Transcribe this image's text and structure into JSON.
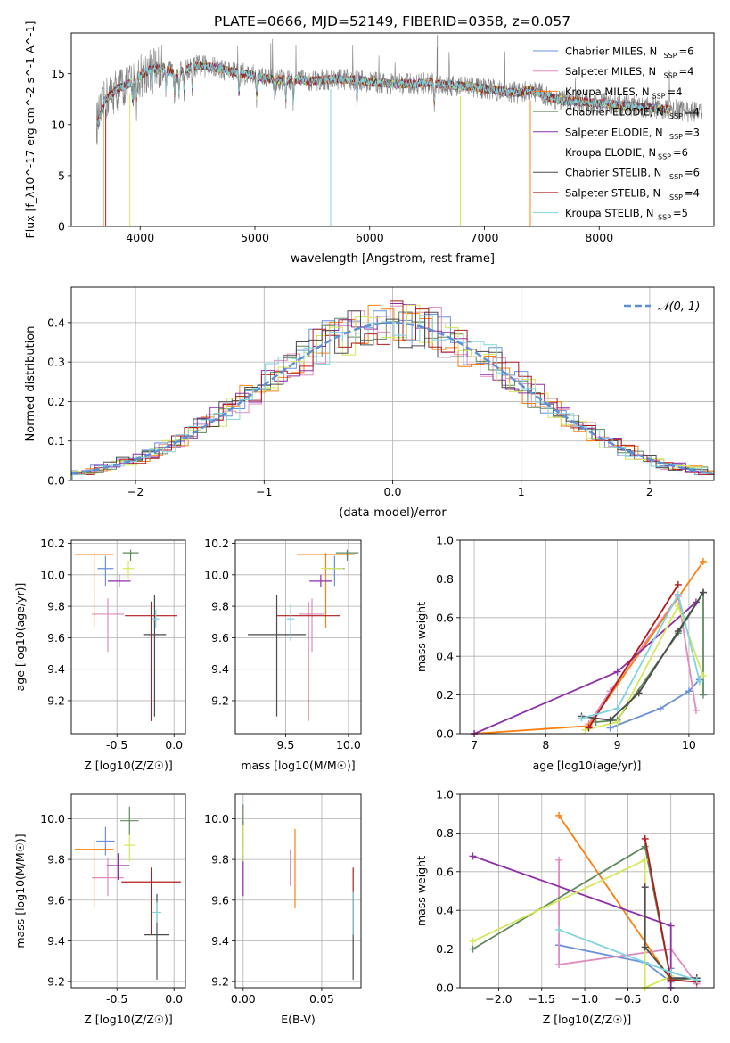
{
  "title": "PLATE=0666, MJD=52149, FIBERID=0358, z=0.057",
  "models": [
    {
      "name": "Chabrier MILES",
      "nssp": "6",
      "color": "#6a8fdc"
    },
    {
      "name": "Salpeter MILES",
      "nssp": "4",
      "color": "#e08cbf"
    },
    {
      "name": "Kroupa MILES",
      "nssp": "4",
      "color": "#ff7f0e"
    },
    {
      "name": "Chabrier ELODIE",
      "nssp": "4",
      "color": "#5f8a5f"
    },
    {
      "name": "Salpeter ELODIE",
      "nssp": "3",
      "color": "#8e2fa8"
    },
    {
      "name": "Kroupa ELODIE",
      "nssp": "6",
      "color": "#d4e85a"
    },
    {
      "name": "Chabrier STELIB",
      "nssp": "6",
      "color": "#4b4b4b"
    },
    {
      "name": "Salpeter STELIB",
      "nssp": "4",
      "color": "#b01c1c"
    },
    {
      "name": "Kroupa STELIB",
      "nssp": "5",
      "color": "#7fd4e0"
    }
  ],
  "chart_data": [
    {
      "id": "spectrum",
      "type": "line",
      "xlabel": "wavelength [Angstrom, rest frame]",
      "ylabel": "Flux [f_λ10^-17 erg cm^-2 s^-1 A^-1]",
      "xlim": [
        3400,
        9000
      ],
      "ylim": [
        0,
        19
      ],
      "xticks": [
        4000,
        5000,
        6000,
        7000,
        8000
      ],
      "yticks": [
        0,
        5,
        10,
        15
      ],
      "continuum": [
        [
          3620,
          10.0
        ],
        [
          3700,
          12.5
        ],
        [
          3800,
          13.5
        ],
        [
          3900,
          14.0
        ],
        [
          4000,
          14.8
        ],
        [
          4100,
          15.5
        ],
        [
          4200,
          15.6
        ],
        [
          4300,
          15.0
        ],
        [
          4400,
          15.4
        ],
        [
          4500,
          15.8
        ],
        [
          4600,
          15.7
        ],
        [
          4700,
          15.5
        ],
        [
          4800,
          15.2
        ],
        [
          4900,
          15.0
        ],
        [
          5000,
          14.8
        ],
        [
          5100,
          14.5
        ],
        [
          5200,
          14.4
        ],
        [
          5300,
          14.4
        ],
        [
          5400,
          14.4
        ],
        [
          5500,
          14.3
        ],
        [
          5600,
          14.4
        ],
        [
          5700,
          14.5
        ],
        [
          5800,
          14.4
        ],
        [
          5900,
          14.4
        ],
        [
          6000,
          14.2
        ],
        [
          6100,
          14.1
        ],
        [
          6200,
          14.0
        ],
        [
          6300,
          14.0
        ],
        [
          6400,
          14.0
        ],
        [
          6500,
          14.1
        ],
        [
          6600,
          14.0
        ],
        [
          6700,
          13.9
        ],
        [
          6800,
          13.8
        ],
        [
          6900,
          13.7
        ],
        [
          7000,
          13.5
        ],
        [
          7100,
          13.4
        ],
        [
          7200,
          13.2
        ],
        [
          7300,
          13.1
        ],
        [
          7400,
          13.4
        ],
        [
          7500,
          13.0
        ],
        [
          7600,
          12.6
        ],
        [
          7700,
          12.3
        ],
        [
          7800,
          12.3
        ],
        [
          7900,
          12.2
        ],
        [
          8000,
          12.1
        ],
        [
          8100,
          12.0
        ],
        [
          8200,
          11.9
        ],
        [
          8300,
          11.8
        ],
        [
          8400,
          11.7
        ],
        [
          8500,
          11.6
        ],
        [
          8600,
          11.5
        ],
        [
          8700,
          11.4
        ],
        [
          8800,
          11.3
        ]
      ],
      "data_color": "#808080",
      "data_range": [
        3620,
        8900
      ],
      "model_range": [
        3620,
        8620
      ]
    },
    {
      "id": "residuals",
      "type": "histogram",
      "xlabel": "(data-model)/error",
      "ylabel": "Normed distribution",
      "xlim": [
        -2.5,
        2.5
      ],
      "ylim": [
        0,
        0.49
      ],
      "xticks": [
        -2,
        -1,
        0,
        1,
        2
      ],
      "yticks": [
        0.0,
        0.1,
        0.2,
        0.3,
        0.4
      ],
      "reference_label": "𝒩(0, 1)",
      "reference_color": "#5b8fd8",
      "bin_width": 0.1
    },
    {
      "id": "age-vs-Z",
      "type": "errorbar",
      "xlabel": "Z [log10(Z/Z☉)]",
      "ylabel": "age  [log10(age/yr)]",
      "xlim": [
        -0.9,
        0.1
      ],
      "ylim": [
        8.99,
        10.22
      ],
      "xticks": [
        -0.5,
        0.0
      ],
      "yticks": [
        9.2,
        9.4,
        9.6,
        9.8,
        10.0,
        10.2
      ],
      "points": [
        {
          "x": -0.6,
          "y": 10.04,
          "xerr": 0.07,
          "ylo": 0.11,
          "yhi": 0.08
        },
        {
          "x": -0.58,
          "y": 9.75,
          "xerr": 0.14,
          "ylo": 0.24,
          "yhi": 0.1
        },
        {
          "x": -0.7,
          "y": 10.13,
          "xerr": 0.17,
          "ylo": 0.47,
          "yhi": 0.01
        },
        {
          "x": -0.38,
          "y": 10.14,
          "xerr": 0.07,
          "ylo": 0.05,
          "yhi": 0.02
        },
        {
          "x": -0.48,
          "y": 9.96,
          "xerr": 0.1,
          "ylo": 0.04,
          "yhi": 0.04
        },
        {
          "x": -0.4,
          "y": 10.04,
          "xerr": 0.05,
          "ylo": 0.07,
          "yhi": 0.05
        },
        {
          "x": -0.17,
          "y": 9.62,
          "xerr": 0.1,
          "ylo": 0.52,
          "yhi": 0.25
        },
        {
          "x": -0.2,
          "y": 9.74,
          "xerr": 0.23,
          "ylo": 0.67,
          "yhi": 0.09
        },
        {
          "x": -0.16,
          "y": 9.72,
          "xerr": 0.03,
          "ylo": 0.06,
          "yhi": 0.06
        }
      ]
    },
    {
      "id": "age-vs-mass",
      "type": "errorbar",
      "xlabel": "mass [log10(M/M☉)]",
      "ylabel": "",
      "xlim": [
        9.1,
        10.1
      ],
      "ylim": [
        8.99,
        10.22
      ],
      "xticks": [
        9.5,
        10.0
      ],
      "yticks": [
        9.2,
        9.4,
        9.6,
        9.8,
        10.0,
        10.2
      ],
      "points": [
        {
          "x": 9.89,
          "y": 10.04,
          "xerr": 0.08,
          "ylo": 0.11,
          "yhi": 0.08
        },
        {
          "x": 9.71,
          "y": 9.75,
          "xerr": 0.1,
          "ylo": 0.24,
          "yhi": 0.1
        },
        {
          "x": 9.82,
          "y": 10.13,
          "xerr": 0.23,
          "ylo": 0.47,
          "yhi": 0.01
        },
        {
          "x": 9.99,
          "y": 10.14,
          "xerr": 0.09,
          "ylo": 0.05,
          "yhi": 0.02
        },
        {
          "x": 9.78,
          "y": 9.96,
          "xerr": 0.09,
          "ylo": 0.04,
          "yhi": 0.04
        },
        {
          "x": 9.87,
          "y": 10.04,
          "xerr": 0.09,
          "ylo": 0.07,
          "yhi": 0.05
        },
        {
          "x": 9.43,
          "y": 9.62,
          "xerr": 0.23,
          "ylo": 0.52,
          "yhi": 0.25
        },
        {
          "x": 9.68,
          "y": 9.74,
          "xerr": 0.25,
          "ylo": 0.67,
          "yhi": 0.09
        },
        {
          "x": 9.54,
          "y": 9.72,
          "xerr": 0.03,
          "ylo": 0.14,
          "yhi": 0.09
        }
      ]
    },
    {
      "id": "mass-vs-Z",
      "type": "errorbar",
      "xlabel": "Z [log10(Z/Z☉)]",
      "ylabel": "mass [log10(M/M☉)]",
      "xlim": [
        -0.9,
        0.1
      ],
      "ylim": [
        9.17,
        10.12
      ],
      "xticks": [
        -0.5,
        0.0
      ],
      "yticks": [
        9.2,
        9.4,
        9.6,
        9.8,
        10.0
      ],
      "points": [
        {
          "x": -0.6,
          "y": 9.89,
          "xerr": 0.08,
          "ylo": 0.07,
          "yhi": 0.07
        },
        {
          "x": -0.58,
          "y": 9.71,
          "xerr": 0.14,
          "ylo": 0.09,
          "yhi": 0.1
        },
        {
          "x": -0.7,
          "y": 9.85,
          "xerr": 0.17,
          "ylo": 0.29,
          "yhi": 0.05
        },
        {
          "x": -0.39,
          "y": 9.99,
          "xerr": 0.08,
          "ylo": 0.07,
          "yhi": 0.07
        },
        {
          "x": -0.49,
          "y": 9.77,
          "xerr": 0.1,
          "ylo": 0.07,
          "yhi": 0.06
        },
        {
          "x": -0.39,
          "y": 9.87,
          "xerr": 0.05,
          "ylo": 0.08,
          "yhi": 0.05
        },
        {
          "x": -0.15,
          "y": 9.43,
          "xerr": 0.11,
          "ylo": 0.22,
          "yhi": 0.2
        },
        {
          "x": -0.2,
          "y": 9.69,
          "xerr": 0.26,
          "ylo": 0.26,
          "yhi": 0.07
        },
        {
          "x": -0.15,
          "y": 9.54,
          "xerr": 0.04,
          "ylo": 0.05,
          "yhi": 0.05
        }
      ]
    },
    {
      "id": "mass-vs-EBV",
      "type": "errorbar",
      "xlabel": "E(B-V)",
      "ylabel": "",
      "xlim": [
        -0.005,
        0.075
      ],
      "ylim": [
        9.17,
        10.12
      ],
      "xticks": [
        0.0,
        0.05
      ],
      "yticks": [
        9.2,
        9.4,
        9.6,
        9.8,
        10.0
      ],
      "points": [
        {
          "x": 0.0,
          "y": 9.89,
          "xerr": 0,
          "ylo": 0.1,
          "yhi": 0.1
        },
        {
          "x": 0.03,
          "y": 9.72,
          "xerr": 0,
          "ylo": 0.05,
          "yhi": 0.13
        },
        {
          "x": 0.033,
          "y": 9.76,
          "xerr": 0,
          "ylo": 0.2,
          "yhi": 0.19
        },
        {
          "x": 0.0,
          "y": 9.99,
          "xerr": 0,
          "ylo": 0.14,
          "yhi": 0.08
        },
        {
          "x": 0.0,
          "y": 9.77,
          "xerr": 0,
          "ylo": 0.15,
          "yhi": 0.05
        },
        {
          "x": 0.0,
          "y": 9.88,
          "xerr": 0,
          "ylo": 0.09,
          "yhi": 0.09
        },
        {
          "x": 0.07,
          "y": 9.43,
          "xerr": 0,
          "ylo": 0.22,
          "yhi": 0.21
        },
        {
          "x": 0.07,
          "y": 9.66,
          "xerr": 0,
          "ylo": 0.23,
          "yhi": 0.1
        },
        {
          "x": 0.07,
          "y": 9.54,
          "xerr": 0,
          "ylo": 0.11,
          "yhi": 0.1
        }
      ]
    },
    {
      "id": "weight-vs-age",
      "type": "line",
      "xlabel": "age  [log10(age/yr)]",
      "ylabel": "mass weight",
      "xlim": [
        6.8,
        10.35
      ],
      "ylim": [
        0,
        1.0
      ],
      "xticks": [
        7,
        8,
        9,
        10
      ],
      "yticks": [
        0.0,
        0.2,
        0.4,
        0.6,
        0.8,
        1.0
      ],
      "series": [
        [
          [
            8.9,
            0.03
          ],
          [
            9.6,
            0.13
          ],
          [
            10.0,
            0.22
          ],
          [
            10.15,
            0.28
          ]
        ],
        [
          [
            8.6,
            0.05
          ],
          [
            8.9,
            0.22
          ],
          [
            9.85,
            0.71
          ],
          [
            10.1,
            0.12
          ]
        ],
        [
          [
            7.0,
            0.0
          ],
          [
            8.6,
            0.04
          ],
          [
            10.2,
            0.89
          ]
        ],
        [
          [
            8.7,
            0.06
          ],
          [
            9.0,
            0.07
          ],
          [
            9.85,
            0.52
          ],
          [
            10.2,
            0.73
          ],
          [
            10.2,
            0.2
          ]
        ],
        [
          [
            7.0,
            0.0
          ],
          [
            9.0,
            0.32
          ],
          [
            10.1,
            0.68
          ]
        ],
        [
          [
            8.55,
            0.02
          ],
          [
            9.0,
            0.06
          ],
          [
            9.85,
            0.66
          ],
          [
            10.2,
            0.3
          ]
        ],
        [
          [
            8.5,
            0.09
          ],
          [
            8.9,
            0.07
          ],
          [
            9.3,
            0.21
          ],
          [
            9.85,
            0.53
          ],
          [
            10.2,
            0.73
          ]
        ],
        [
          [
            8.6,
            0.03
          ],
          [
            9.85,
            0.77
          ]
        ],
        [
          [
            8.5,
            0.08
          ],
          [
            9.0,
            0.13
          ],
          [
            9.85,
            0.72
          ],
          [
            10.15,
            0.27
          ]
        ]
      ]
    },
    {
      "id": "weight-vs-Z",
      "type": "line",
      "xlabel": "Z [log10(Z/Z☉)]",
      "ylabel": "mass weight",
      "xlim": [
        -2.45,
        0.5
      ],
      "ylim": [
        0,
        1.0
      ],
      "xticks": [
        -2.0,
        -1.5,
        -1.0,
        -0.5,
        0.0
      ],
      "yticks": [
        0.0,
        0.2,
        0.4,
        0.6,
        0.8,
        1.0
      ],
      "series": [
        [
          [
            -1.3,
            0.22
          ],
          [
            -0.3,
            0.13
          ],
          [
            0.0,
            0.03
          ],
          [
            0.0,
            0.1
          ]
        ],
        [
          [
            -1.3,
            0.66
          ],
          [
            -1.3,
            0.12
          ],
          [
            0.0,
            0.2
          ],
          [
            0.3,
            0.02
          ]
        ],
        [
          [
            -1.3,
            0.89
          ],
          [
            0.0,
            0.04
          ]
        ],
        [
          [
            -2.3,
            0.2
          ],
          [
            -0.3,
            0.73
          ],
          [
            0.0,
            0.04
          ],
          [
            0.3,
            0.05
          ]
        ],
        [
          [
            -2.3,
            0.68
          ],
          [
            0.0,
            0.32
          ],
          [
            0.0,
            0.0
          ]
        ],
        [
          [
            -2.3,
            0.24
          ],
          [
            -0.3,
            0.66
          ],
          [
            -0.3,
            0.0
          ],
          [
            0.0,
            0.06
          ]
        ],
        [
          [
            -0.3,
            0.52
          ],
          [
            -0.3,
            0.21
          ],
          [
            0.0,
            0.05
          ],
          [
            0.3,
            0.05
          ]
        ],
        [
          [
            -0.3,
            0.77
          ],
          [
            0.0,
            0.04
          ],
          [
            0.3,
            0.03
          ]
        ],
        [
          [
            -1.3,
            0.3
          ],
          [
            0.0,
            0.08
          ],
          [
            0.3,
            0.04
          ]
        ]
      ]
    }
  ]
}
